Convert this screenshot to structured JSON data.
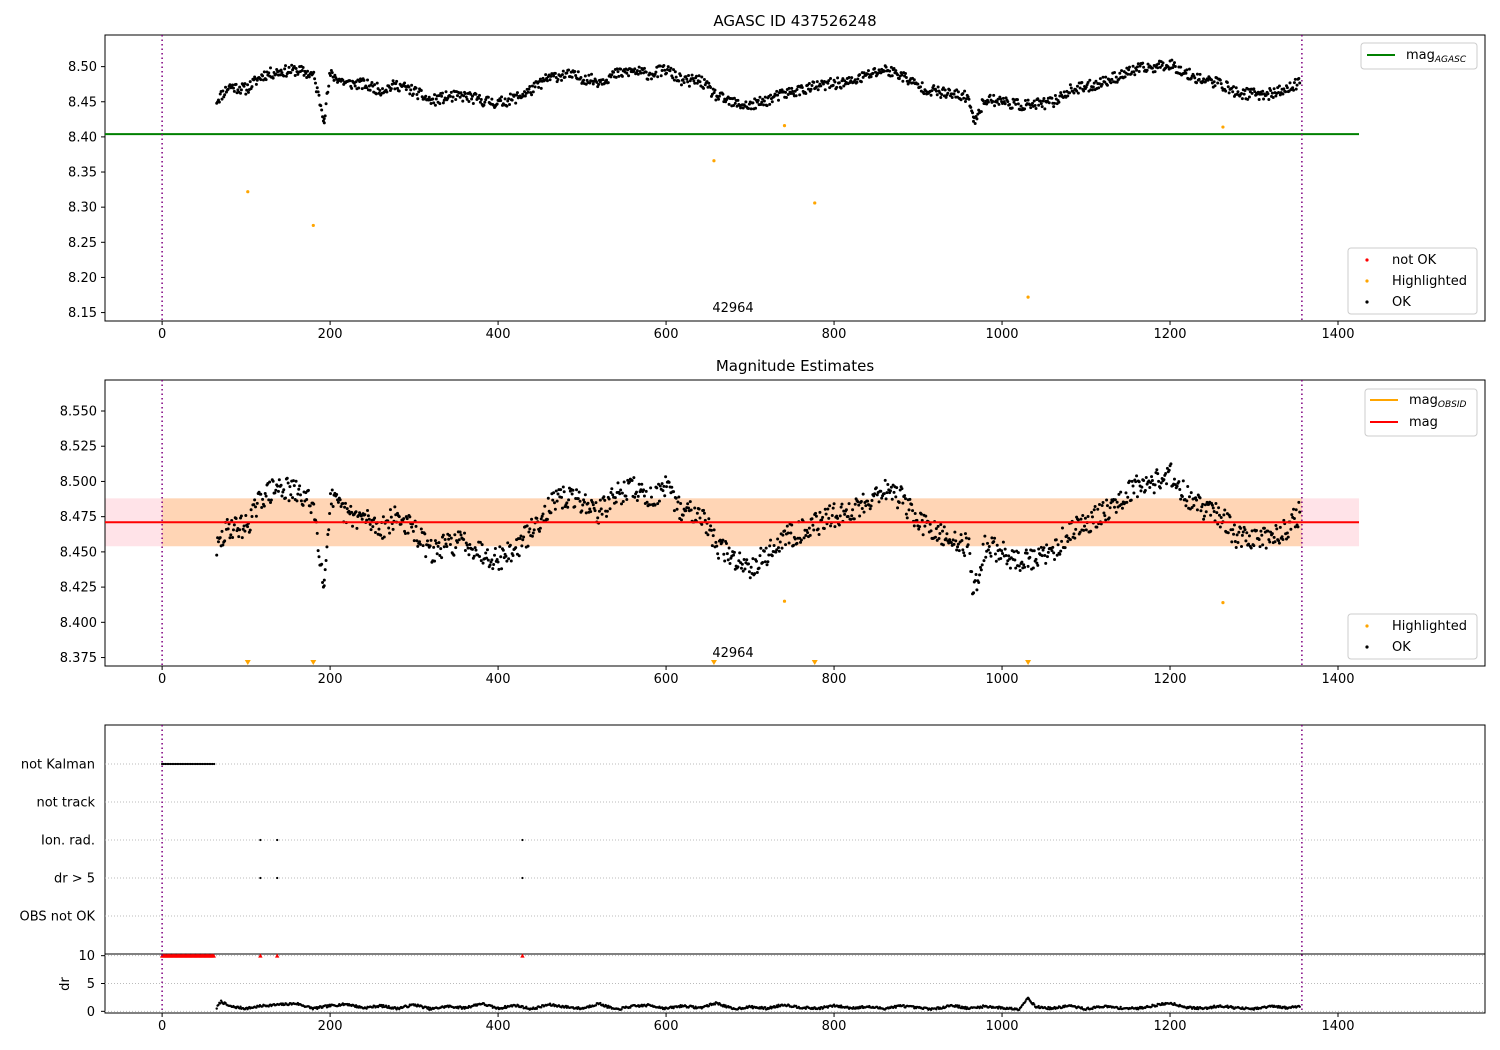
{
  "chart_data": [
    {
      "type": "scatter",
      "title": "AGASC ID 437526248",
      "xlim": [
        -68,
        1575
      ],
      "ylim": [
        8.138,
        8.545
      ],
      "xticks": [
        0,
        200,
        400,
        600,
        800,
        1000,
        1200,
        1400
      ],
      "yticks": [
        8.15,
        8.2,
        8.25,
        8.3,
        8.35,
        8.4,
        8.45,
        8.5
      ],
      "ytick_decimals": 2,
      "vlines": [
        0,
        1357
      ],
      "reference_line": {
        "label": "mag",
        "subscript": "AGASC",
        "value": 8.404,
        "x_range": [
          -68,
          1425
        ],
        "color": "#008000"
      },
      "annotation": {
        "text": "42964",
        "x": 676,
        "y": 8.153
      },
      "series": [
        {
          "name": "not OK",
          "color": "#ff0000",
          "x": [],
          "y": []
        },
        {
          "name": "Highlighted",
          "color": "#ffa500",
          "x": [
            102,
            180,
            657,
            741,
            777,
            1031,
            1263
          ],
          "y": [
            8.322,
            8.274,
            8.366,
            8.416,
            8.306,
            8.172,
            8.414
          ]
        },
        {
          "name": "OK",
          "color": "#000000",
          "x": [
            65,
            80,
            100,
            120,
            140,
            160,
            180,
            193,
            200,
            220,
            240,
            260,
            280,
            300,
            320,
            340,
            360,
            380,
            400,
            420,
            440,
            460,
            480,
            500,
            520,
            540,
            560,
            580,
            600,
            620,
            640,
            660,
            680,
            700,
            720,
            740,
            760,
            780,
            800,
            820,
            840,
            860,
            880,
            900,
            920,
            940,
            960,
            966,
            980,
            1000,
            1020,
            1040,
            1060,
            1080,
            1100,
            1120,
            1140,
            1160,
            1180,
            1200,
            1220,
            1240,
            1260,
            1280,
            1300,
            1320,
            1340,
            1355
          ],
          "y": [
            8.452,
            8.472,
            8.468,
            8.488,
            8.493,
            8.495,
            8.488,
            8.426,
            8.489,
            8.476,
            8.475,
            8.467,
            8.474,
            8.465,
            8.451,
            8.457,
            8.458,
            8.452,
            8.448,
            8.455,
            8.467,
            8.484,
            8.489,
            8.484,
            8.479,
            8.489,
            8.494,
            8.489,
            8.496,
            8.479,
            8.481,
            8.458,
            8.448,
            8.444,
            8.452,
            8.461,
            8.467,
            8.472,
            8.476,
            8.478,
            8.488,
            8.496,
            8.488,
            8.472,
            8.465,
            8.46,
            8.457,
            8.422,
            8.454,
            8.451,
            8.445,
            8.446,
            8.449,
            8.466,
            8.471,
            8.478,
            8.487,
            8.496,
            8.499,
            8.504,
            8.49,
            8.481,
            8.476,
            8.462,
            8.461,
            8.461,
            8.468,
            8.478
          ]
        }
      ],
      "legend_top": {
        "position": "upper-right",
        "entries": [
          {
            "label": "mag",
            "subscript": "AGASC",
            "color": "#008000"
          }
        ]
      },
      "legend_bottom": {
        "position": "lower-right",
        "entries": [
          "not OK",
          "Highlighted",
          "OK"
        ]
      }
    },
    {
      "type": "scatter",
      "title": "Magnitude Estimates",
      "xlim": [
        -68,
        1575
      ],
      "ylim": [
        8.369,
        8.572
      ],
      "xticks": [
        0,
        200,
        400,
        600,
        800,
        1000,
        1200,
        1400
      ],
      "yticks": [
        8.375,
        8.4,
        8.425,
        8.45,
        8.475,
        8.5,
        8.525,
        8.55
      ],
      "ytick_decimals": 3,
      "vlines": [
        0,
        1357
      ],
      "mag_line": {
        "label": "mag",
        "value": 8.471,
        "color": "#ff0000"
      },
      "mag_band": {
        "low": 8.454,
        "high": 8.488,
        "x_range": [
          -68,
          1425
        ],
        "fill": "#ffc0cb"
      },
      "obsid_segment": {
        "label": "mag",
        "subscript": "OBSID",
        "value": 8.471,
        "low": 8.454,
        "high": 8.488,
        "x_range": [
          0,
          1357
        ],
        "color": "#ffa500"
      },
      "annotation": {
        "text": "42964",
        "x": 676,
        "y": 8.377
      },
      "lower_limit_markers": {
        "color": "#ffa500",
        "x": [
          102,
          180,
          657,
          777,
          1031
        ]
      },
      "series": [
        {
          "name": "Highlighted",
          "color": "#ffa500",
          "x": [
            741,
            1263
          ],
          "y": [
            8.415,
            8.414
          ]
        },
        {
          "name": "OK",
          "color": "#000000",
          "x": [
            65,
            80,
            100,
            120,
            140,
            160,
            180,
            193,
            200,
            220,
            240,
            260,
            280,
            300,
            320,
            340,
            360,
            380,
            400,
            420,
            440,
            460,
            480,
            500,
            520,
            540,
            560,
            580,
            600,
            620,
            640,
            660,
            680,
            700,
            720,
            740,
            760,
            780,
            800,
            820,
            840,
            860,
            880,
            900,
            920,
            940,
            960,
            966,
            980,
            1000,
            1020,
            1040,
            1060,
            1080,
            1100,
            1120,
            1140,
            1160,
            1180,
            1200,
            1220,
            1240,
            1260,
            1280,
            1300,
            1320,
            1340,
            1355
          ],
          "y": [
            8.452,
            8.468,
            8.468,
            8.49,
            8.496,
            8.492,
            8.484,
            8.426,
            8.488,
            8.476,
            8.474,
            8.467,
            8.475,
            8.465,
            8.45,
            8.455,
            8.458,
            8.45,
            8.445,
            8.452,
            8.465,
            8.482,
            8.489,
            8.486,
            8.478,
            8.49,
            8.496,
            8.488,
            8.495,
            8.478,
            8.48,
            8.455,
            8.445,
            8.44,
            8.448,
            8.46,
            8.465,
            8.47,
            8.476,
            8.478,
            8.487,
            8.495,
            8.488,
            8.472,
            8.463,
            8.458,
            8.455,
            8.421,
            8.454,
            8.45,
            8.443,
            8.445,
            8.449,
            8.465,
            8.471,
            8.478,
            8.488,
            8.497,
            8.5,
            8.505,
            8.49,
            8.48,
            8.476,
            8.46,
            8.46,
            8.46,
            8.468,
            8.478
          ]
        }
      ],
      "legend_top": {
        "position": "upper-right",
        "entries": [
          {
            "label": "mag",
            "subscript": "OBSID",
            "color": "#ffa500"
          },
          {
            "label": "mag",
            "color": "#ff0000"
          }
        ]
      },
      "legend_bottom": {
        "position": "lower-right",
        "entries": [
          "Highlighted",
          "OK"
        ]
      }
    },
    {
      "type": "scatter",
      "xlim": [
        -68,
        1575
      ],
      "xticks": [
        0,
        200,
        400,
        600,
        800,
        1000,
        1200,
        1400
      ],
      "vlines": [
        0,
        1357
      ],
      "flag_rows": [
        "not Kalman",
        "not track",
        "Ion. rad.",
        "dr > 5",
        "OBS not OK"
      ],
      "flags": {
        "not Kalman": {
          "range": [
            0,
            62
          ]
        },
        "not track": {
          "x": []
        },
        "Ion. rad.": {
          "x": [
            117,
            137,
            429
          ]
        },
        "dr > 5": {
          "x": [
            117,
            137,
            429
          ]
        },
        "OBS not OK": {
          "x": []
        }
      },
      "dr_panel": {
        "ylabel": "dr",
        "yticks": [
          0,
          5,
          10
        ],
        "ylim": [
          -0.3,
          10.3
        ],
        "clipped_markers": {
          "color": "#ff0000",
          "value": 10,
          "range": [
            0,
            62
          ],
          "x": [
            117,
            137,
            429
          ]
        },
        "series": {
          "name": "dr",
          "color": "#000000",
          "x": [
            65,
            70,
            80,
            100,
            120,
            140,
            160,
            180,
            200,
            220,
            240,
            260,
            280,
            300,
            320,
            340,
            360,
            380,
            400,
            420,
            440,
            460,
            480,
            500,
            520,
            540,
            560,
            580,
            600,
            620,
            640,
            660,
            680,
            700,
            720,
            740,
            760,
            780,
            800,
            820,
            840,
            860,
            880,
            900,
            920,
            940,
            960,
            980,
            1000,
            1020,
            1031,
            1040,
            1060,
            1080,
            1100,
            1120,
            1140,
            1160,
            1180,
            1200,
            1220,
            1240,
            1260,
            1280,
            1300,
            1320,
            1340,
            1355
          ],
          "y": [
            0.6,
            1.8,
            0.9,
            0.5,
            1.0,
            1.2,
            1.4,
            0.5,
            1.0,
            1.3,
            0.6,
            1.0,
            0.5,
            1.2,
            0.4,
            0.9,
            0.6,
            1.4,
            0.5,
            1.1,
            0.4,
            1.2,
            0.8,
            0.5,
            1.4,
            0.3,
            0.9,
            1.1,
            0.5,
            1.0,
            0.6,
            1.5,
            0.4,
            0.8,
            0.5,
            1.2,
            0.7,
            0.5,
            1.0,
            0.6,
            0.8,
            0.5,
            1.0,
            0.6,
            0.4,
            1.1,
            0.5,
            0.9,
            0.6,
            0.4,
            2.4,
            0.8,
            0.5,
            1.0,
            0.4,
            0.9,
            0.6,
            0.5,
            1.0,
            1.5,
            0.7,
            0.5,
            1.0,
            0.6,
            0.4,
            0.9,
            0.6,
            1.0
          ]
        }
      }
    }
  ]
}
